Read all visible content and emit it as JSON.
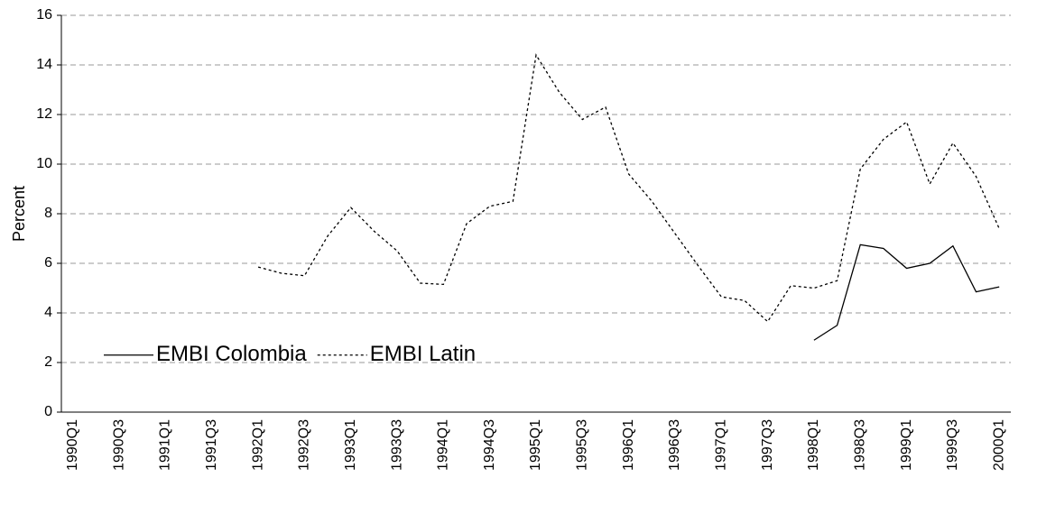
{
  "chart_data": {
    "type": "line",
    "y_label": "Percent",
    "categories": [
      "1990Q1",
      null,
      "1990Q3",
      null,
      "1991Q1",
      null,
      "1991Q3",
      null,
      "1992Q1",
      null,
      "1992Q3",
      null,
      "1993Q1",
      null,
      "1993Q3",
      null,
      "1994Q1",
      null,
      "1994Q3",
      null,
      "1995Q1",
      null,
      "1995Q3",
      null,
      "1996Q1",
      null,
      "1996Q3",
      null,
      "1997Q1",
      null,
      "1997Q3",
      null,
      "1998Q1",
      null,
      "1998Q3",
      null,
      "1999Q1",
      null,
      "1999Q3",
      null,
      "2000Q1"
    ],
    "series": [
      {
        "name": "EMBI Colombia",
        "color": "#000000",
        "dash": "solid",
        "values": [
          null,
          null,
          null,
          null,
          null,
          null,
          null,
          null,
          null,
          null,
          null,
          null,
          null,
          null,
          null,
          null,
          null,
          null,
          null,
          null,
          null,
          null,
          null,
          null,
          null,
          null,
          null,
          null,
          null,
          null,
          null,
          null,
          2.9,
          3.5,
          6.75,
          6.6,
          5.8,
          6.0,
          6.7,
          4.85,
          5.05
        ]
      },
      {
        "name": "EMBI Latin",
        "color": "#000000",
        "dash": "dotted",
        "values": [
          null,
          null,
          null,
          null,
          null,
          null,
          null,
          null,
          5.85,
          5.6,
          5.5,
          7.1,
          8.25,
          7.3,
          6.5,
          5.2,
          5.15,
          7.6,
          8.3,
          8.5,
          14.4,
          12.9,
          11.8,
          12.3,
          9.6,
          8.5,
          7.2,
          5.9,
          4.65,
          4.5,
          3.65,
          5.1,
          5.0,
          5.3,
          9.8,
          11.0,
          11.7,
          9.2,
          10.85,
          9.5,
          7.4
        ]
      }
    ],
    "ylim": [
      0,
      16
    ],
    "yticks": [
      0,
      2,
      4,
      6,
      8,
      10,
      12,
      14,
      16
    ],
    "grid": true,
    "legend": "lower-left"
  }
}
